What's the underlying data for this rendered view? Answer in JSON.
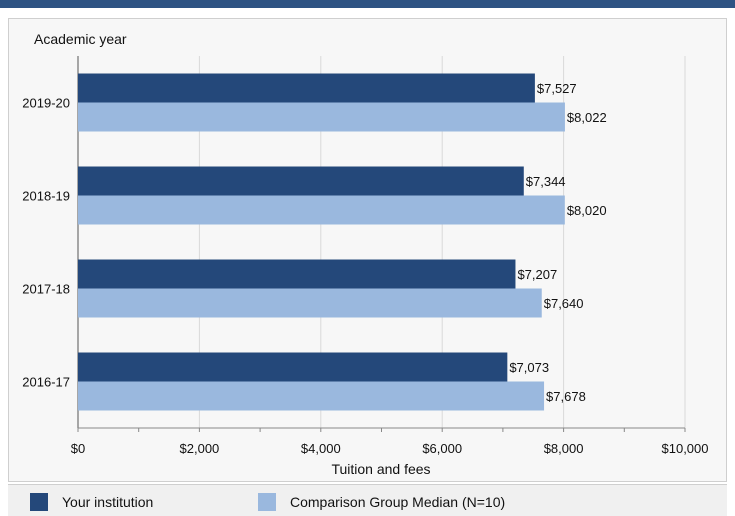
{
  "chart_data": {
    "type": "bar",
    "orientation": "horizontal",
    "ylabel": "Academic year",
    "xlabel": "Tuition and fees",
    "categories": [
      "2019-20",
      "2018-19",
      "2017-18",
      "2016-17"
    ],
    "xlim": [
      0,
      10000
    ],
    "xticks": [
      0,
      2000,
      4000,
      6000,
      8000,
      10000
    ],
    "xtick_labels": [
      "$0",
      "$2,000",
      "$4,000",
      "$6,000",
      "$8,000",
      "$10,000"
    ],
    "grid": true,
    "legend_position": "bottom",
    "series": [
      {
        "name": "Your institution",
        "color": "#24487a",
        "values": [
          7527,
          7344,
          7207,
          7073
        ],
        "labels": [
          "$7,527",
          "$7,344",
          "$7,207",
          "$7,073"
        ]
      },
      {
        "name": "Comparison Group Median (N=10)",
        "color": "#9ab8de",
        "values": [
          8022,
          8020,
          7640,
          7678
        ],
        "labels": [
          "$8,022",
          "$8,020",
          "$7,640",
          "$7,678"
        ]
      }
    ]
  }
}
